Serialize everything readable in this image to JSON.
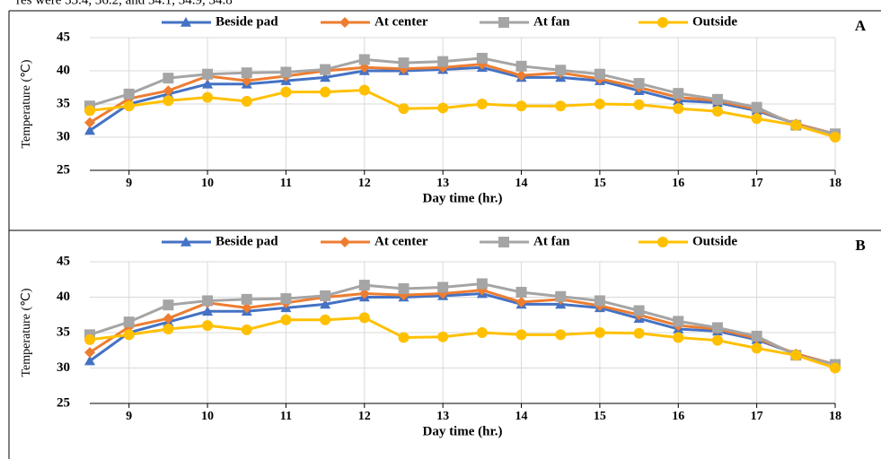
{
  "text_fragment": "res were 33.4, 36.2, and 34.1, 34.9, 34.8",
  "chart_data": [
    {
      "type": "line",
      "panel_label": "A",
      "xlabel": "Day time (hr.)",
      "ylabel": "Temperature (℃)",
      "x": [
        8.5,
        9,
        9.5,
        10,
        10.5,
        11,
        11.5,
        12,
        12.5,
        13,
        13.5,
        14,
        14.5,
        15,
        15.5,
        16,
        16.5,
        17,
        17.5,
        18
      ],
      "xlim": [
        8.5,
        18
      ],
      "xticks": [
        9,
        10,
        11,
        12,
        13,
        14,
        15,
        16,
        17,
        18
      ],
      "ylim": [
        25,
        45
      ],
      "yticks": [
        25,
        30,
        35,
        40,
        45
      ],
      "grid": true,
      "series": [
        {
          "name": "Beside pad",
          "color": "#4472c4",
          "marker": "triangle",
          "values": [
            31,
            35,
            36.5,
            38,
            38,
            38.5,
            39,
            40,
            40,
            40.2,
            40.5,
            39,
            39,
            38.5,
            37,
            35.5,
            35.2,
            34,
            32,
            30.5
          ]
        },
        {
          "name": "At center",
          "color": "#ed7d31",
          "marker": "diamond",
          "values": [
            32.2,
            35.8,
            37,
            39.2,
            38.5,
            39.2,
            40,
            40.5,
            40.3,
            40.5,
            41,
            39.3,
            39.7,
            38.8,
            37.5,
            36,
            35.5,
            34.2,
            32,
            30.5
          ]
        },
        {
          "name": "At fan",
          "color": "#a5a5a5",
          "marker": "square",
          "values": [
            34.7,
            36.5,
            38.9,
            39.5,
            39.7,
            39.8,
            40.2,
            41.7,
            41.2,
            41.4,
            41.9,
            40.7,
            40.1,
            39.5,
            38.1,
            36.6,
            35.7,
            34.5,
            31.8,
            30.5
          ]
        },
        {
          "name": "Outside",
          "color": "#ffc000",
          "marker": "circle",
          "values": [
            34,
            34.7,
            35.5,
            36,
            35.4,
            36.8,
            36.8,
            37.1,
            34.3,
            34.4,
            35,
            34.7,
            34.7,
            35,
            34.9,
            34.3,
            33.9,
            32.8,
            31.8,
            30
          ]
        }
      ]
    },
    {
      "type": "line",
      "panel_label": "B",
      "xlabel": "Day time (hr.)",
      "ylabel": "Temperature (℃)",
      "x": [
        8.5,
        9,
        9.5,
        10,
        10.5,
        11,
        11.5,
        12,
        12.5,
        13,
        13.5,
        14,
        14.5,
        15,
        15.5,
        16,
        16.5,
        17,
        17.5,
        18
      ],
      "xlim": [
        8.5,
        18
      ],
      "xticks": [
        9,
        10,
        11,
        12,
        13,
        14,
        15,
        16,
        17,
        18
      ],
      "ylim": [
        25,
        45
      ],
      "yticks": [
        25,
        30,
        35,
        40,
        45
      ],
      "grid": true,
      "series": [
        {
          "name": "Beside pad",
          "color": "#4472c4",
          "marker": "triangle",
          "values": [
            31,
            35,
            36.5,
            38,
            38,
            38.5,
            39,
            40,
            40,
            40.2,
            40.5,
            39,
            39,
            38.5,
            37,
            35.5,
            35.2,
            34,
            32,
            30.5
          ]
        },
        {
          "name": "At center",
          "color": "#ed7d31",
          "marker": "diamond",
          "values": [
            32.2,
            35.8,
            37,
            39.2,
            38.5,
            39.2,
            40,
            40.5,
            40.3,
            40.5,
            41,
            39.3,
            39.7,
            38.8,
            37.5,
            36,
            35.5,
            34.2,
            32,
            30.5
          ]
        },
        {
          "name": "At fan",
          "color": "#a5a5a5",
          "marker": "square",
          "values": [
            34.7,
            36.5,
            38.9,
            39.5,
            39.7,
            39.8,
            40.2,
            41.7,
            41.2,
            41.4,
            41.9,
            40.7,
            40.1,
            39.5,
            38.1,
            36.6,
            35.7,
            34.5,
            31.8,
            30.5
          ]
        },
        {
          "name": "Outside",
          "color": "#ffc000",
          "marker": "circle",
          "values": [
            34,
            34.7,
            35.5,
            36,
            35.4,
            36.8,
            36.8,
            37.1,
            34.3,
            34.4,
            35,
            34.7,
            34.7,
            35,
            34.9,
            34.3,
            33.9,
            32.8,
            31.8,
            30
          ]
        }
      ]
    }
  ]
}
